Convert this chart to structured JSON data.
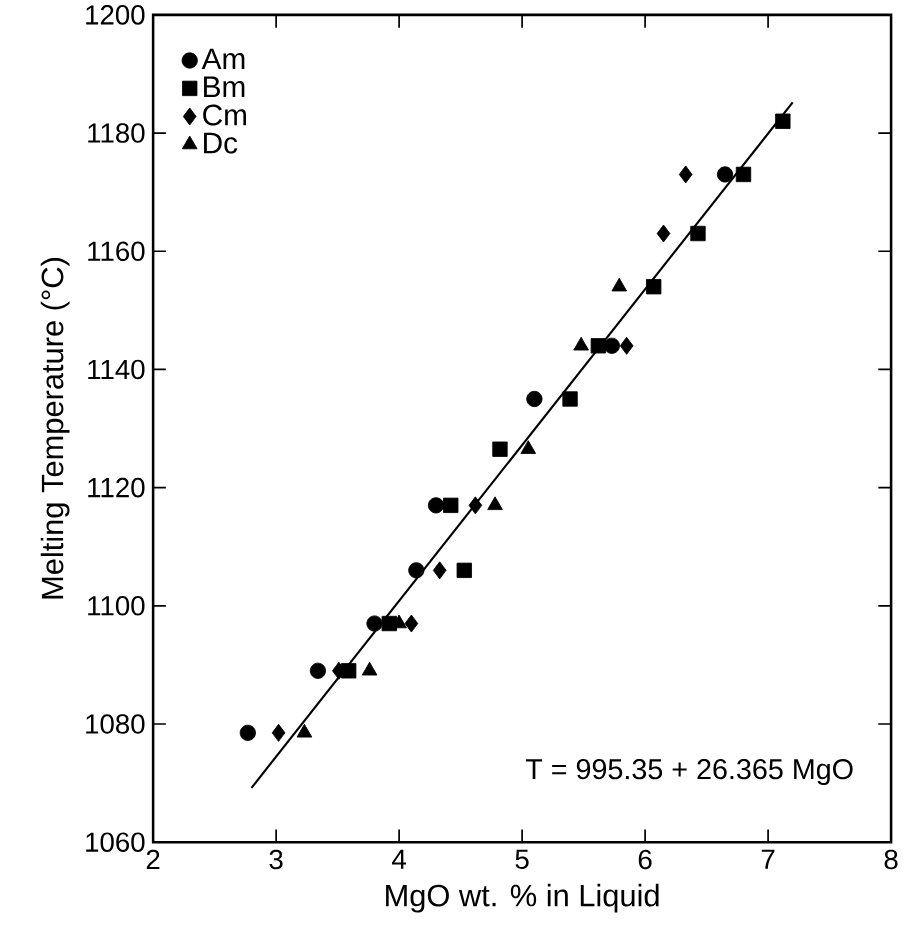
{
  "chart_data": {
    "type": "scatter",
    "xlabel": "MgO wt. % in Liquid",
    "ylabel": "Melting Temperature (°C)",
    "xlim": [
      2,
      8
    ],
    "xticks": [
      2,
      3,
      4,
      5,
      6,
      7,
      8
    ],
    "ylim": [
      1060,
      1200
    ],
    "yticks": [
      1060,
      1080,
      1100,
      1120,
      1140,
      1160,
      1180,
      1200
    ],
    "legend": "top left",
    "grid": false,
    "series": [
      {
        "name": "Am",
        "color": "#000000",
        "marker": "circle",
        "x": [
          2.77,
          3.34,
          3.8,
          4.14,
          4.3,
          5.1,
          5.73,
          6.65
        ],
        "values": [
          1078.5,
          1089,
          1097,
          1106,
          1117,
          1135,
          1144,
          1173
        ]
      },
      {
        "name": "Bm",
        "color": "#000000",
        "marker": "square",
        "x": [
          3.59,
          3.92,
          4.42,
          4.53,
          4.82,
          5.39,
          5.62,
          6.07,
          6.43,
          6.8,
          7.12
        ],
        "values": [
          1089,
          1097,
          1117,
          1106,
          1126.5,
          1135,
          1144,
          1154,
          1163,
          1173,
          1182
        ]
      },
      {
        "name": "Cm",
        "color": "#000000",
        "marker": "diamond",
        "x": [
          3.02,
          3.51,
          4.1,
          4.33,
          4.62,
          5.85,
          6.15,
          6.33
        ],
        "values": [
          1078.5,
          1089,
          1097,
          1106,
          1117,
          1144,
          1163,
          1173
        ]
      },
      {
        "name": "Dc",
        "color": "#000000",
        "marker": "triangle",
        "x": [
          3.23,
          3.76,
          4.0,
          4.78,
          5.05,
          5.48,
          5.79
        ],
        "values": [
          1078.5,
          1089,
          1097,
          1117,
          1126.5,
          1144,
          1154
        ]
      },
      {
        "type": "line",
        "color": "#000000",
        "marker": "none",
        "line_style": "solid",
        "x": [
          2.8,
          7.2
        ],
        "values": [
          1069.2,
          1185.2
        ]
      }
    ],
    "annotations": [
      "T = 995.35 + 26.365 MgO"
    ]
  }
}
